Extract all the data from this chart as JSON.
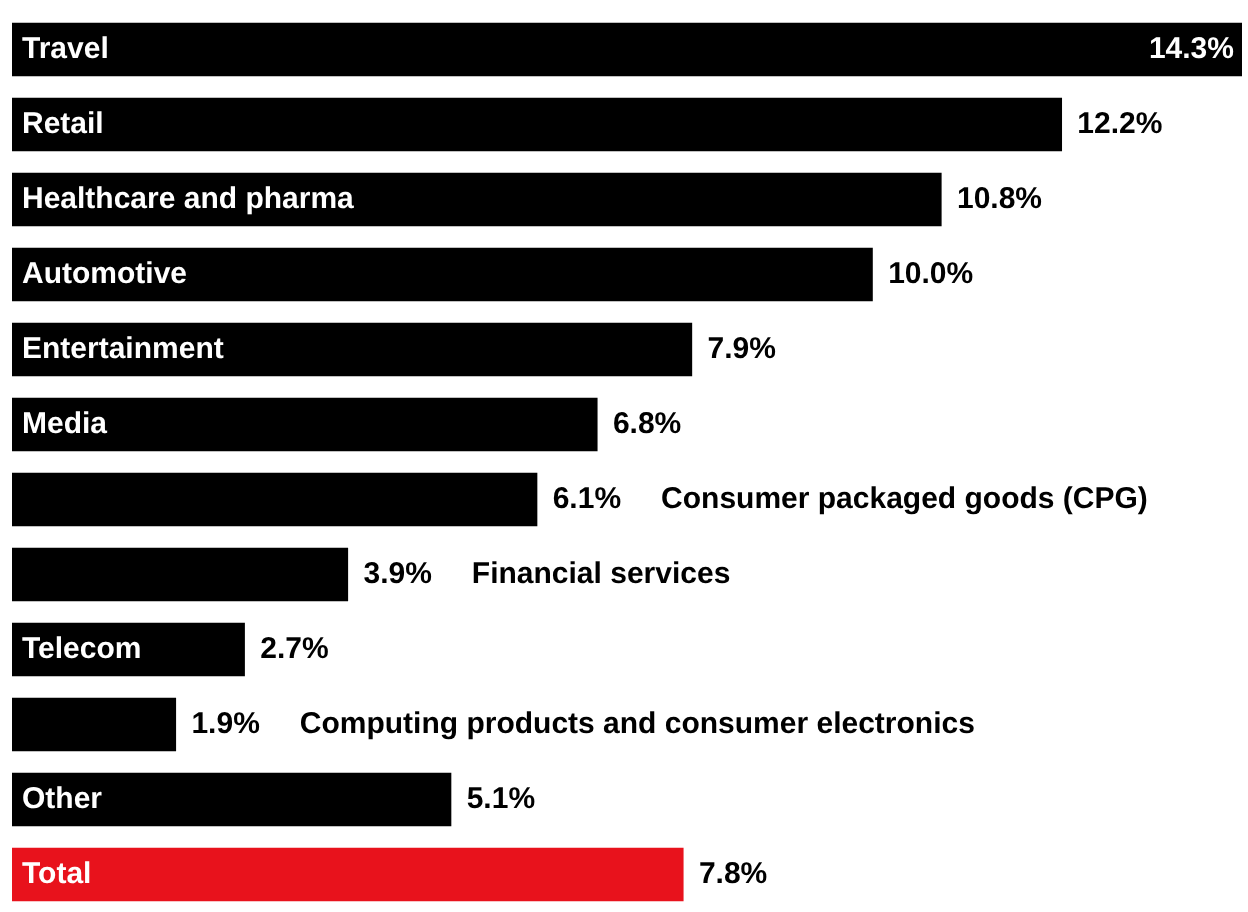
{
  "chart_data": {
    "type": "bar",
    "orientation": "horizontal",
    "categories": [
      "Travel",
      "Retail",
      "Healthcare and pharma",
      "Automotive",
      "Entertainment",
      "Media",
      "Consumer packaged goods (CPG)",
      "Financial services",
      "Telecom",
      "Computing products and consumer electronics",
      "Other",
      "Total"
    ],
    "values": [
      14.3,
      12.2,
      10.8,
      10.0,
      7.9,
      6.8,
      6.1,
      3.9,
      2.7,
      1.9,
      5.1,
      7.8
    ],
    "value_labels": [
      "14.3%",
      "12.2%",
      "10.8%",
      "10.0%",
      "7.9%",
      "6.8%",
      "6.1%",
      "3.9%",
      "2.7%",
      "1.9%",
      "5.1%",
      "7.8%"
    ],
    "colors": [
      "#000000",
      "#000000",
      "#000000",
      "#000000",
      "#000000",
      "#000000",
      "#000000",
      "#000000",
      "#000000",
      "#000000",
      "#000000",
      "#e8121c"
    ]
  }
}
